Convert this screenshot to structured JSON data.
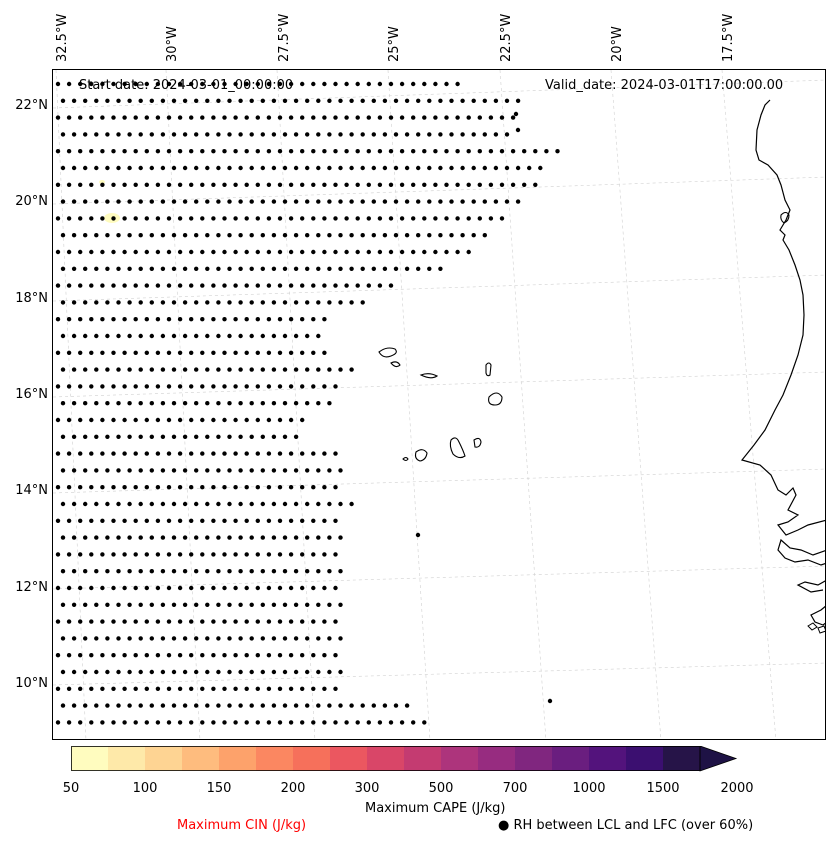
{
  "map": {
    "start_date": "Start date: 2024-03-01_00:00:00",
    "valid_date": "Valid_date: 2024-03-01T17:00:00.00",
    "lon_labels": [
      "32.5°W",
      "30°W",
      "27.5°W",
      "25°W",
      "22.5°W",
      "20°W",
      "17.5°W"
    ],
    "lat_labels": [
      "22°N",
      "20°N",
      "18°N",
      "16°N",
      "14°N",
      "12°N",
      "10°N"
    ],
    "coastline_color": "#000000",
    "grid": true
  },
  "colorbar": {
    "label": "Maximum CAPE (J/kg)",
    "ticks": [
      "50",
      "100",
      "150",
      "200",
      "300",
      "500",
      "700",
      "1000",
      "1500",
      "2000"
    ],
    "colors": [
      "#fffcbf",
      "#fee9a9",
      "#fed493",
      "#febc7e",
      "#fda26b",
      "#fb8761",
      "#f6705b",
      "#eb5760",
      "#d94668",
      "#c43b71",
      "#ad347c",
      "#972c80",
      "#80267f",
      "#6a1e7f",
      "#53137c",
      "#3b0f70",
      "#261448",
      "#1e1245"
    ]
  },
  "legend": {
    "cin_label": "Maximum CIN (J/kg)",
    "cin_color": "#ff0000",
    "rh_marker": "●",
    "rh_label": "RH between LCL and LFC (over 60%)"
  }
}
